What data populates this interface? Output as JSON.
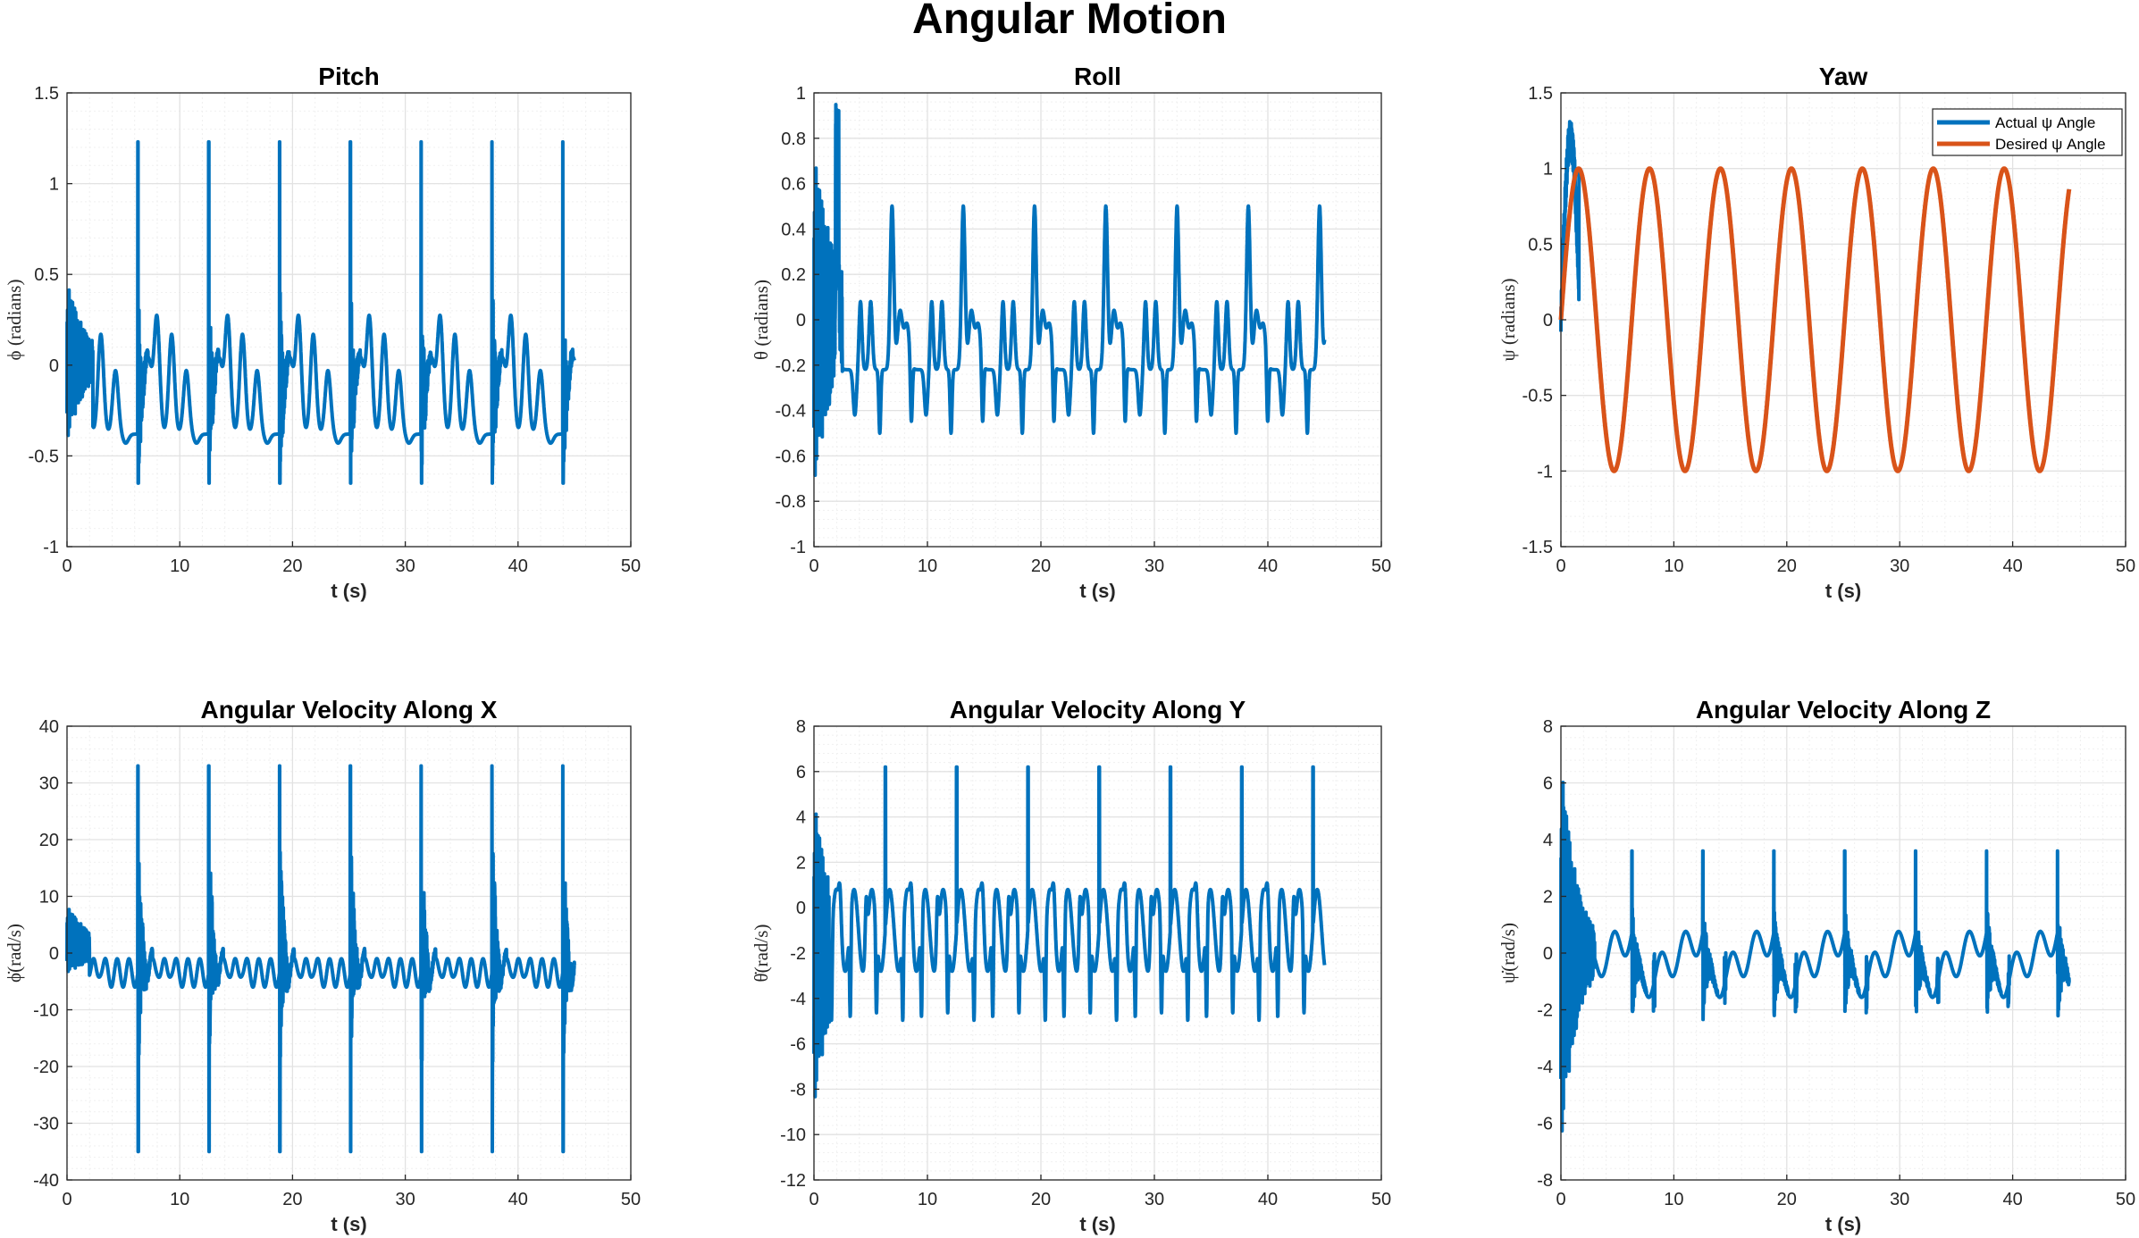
{
  "figure_title": "Angular Motion",
  "colors": {
    "actual": "#0072BD",
    "desired": "#D95319",
    "grid": "#E6E6E6",
    "axis": "#262626"
  },
  "chart_data": [
    {
      "id": "pitch",
      "type": "line",
      "title": "Pitch",
      "xlabel": "t (s)",
      "ylabel": "ϕ (radians)",
      "xlim": [
        0,
        50
      ],
      "ylim": [
        -1,
        1.5
      ],
      "xticks": [
        0,
        10,
        20,
        30,
        40,
        50
      ],
      "yticks": [
        -1,
        -0.5,
        0,
        0.5,
        1,
        1.5
      ],
      "grid": true,
      "minor_grid": true,
      "series": [
        {
          "color": "#0072BD",
          "kind": "pitch",
          "t_end": 45
        }
      ],
      "envelope": {
        "period": 6.28,
        "spike_max": 1.23,
        "spike_min": -0.65,
        "base_min": -0.38,
        "bump_max": 0.36,
        "start_min": -0.55,
        "start_max": 0.52
      }
    },
    {
      "id": "roll",
      "type": "line",
      "title": "Roll",
      "xlabel": "t (s)",
      "ylabel": "θ (radians)",
      "xlim": [
        0,
        50
      ],
      "ylim": [
        -1,
        1
      ],
      "xticks": [
        0,
        10,
        20,
        30,
        40,
        50
      ],
      "yticks": [
        -1,
        -0.8,
        -0.6,
        -0.4,
        -0.2,
        0,
        0.2,
        0.4,
        0.6,
        0.8,
        1
      ],
      "grid": true,
      "minor_grid": true,
      "series": [
        {
          "color": "#0072BD",
          "kind": "roll",
          "t_end": 45
        }
      ],
      "envelope": {
        "period": 6.28,
        "peak_max": 0.55,
        "trough_min": -0.5,
        "start_min": -0.93,
        "start_max": 0.87
      }
    },
    {
      "id": "yaw",
      "type": "line",
      "title": "Yaw",
      "xlabel": "t (s)",
      "ylabel": "ψ (radians)",
      "xlim": [
        0,
        50
      ],
      "ylim": [
        -1.5,
        1.5
      ],
      "xticks": [
        0,
        10,
        20,
        30,
        40,
        50
      ],
      "yticks": [
        -1.5,
        -1,
        -0.5,
        0,
        0.5,
        1,
        1.5
      ],
      "grid": true,
      "minor_grid": true,
      "legend": {
        "location": "top-right",
        "entries": [
          "Actual ψ Angle",
          "Desired ψ Angle"
        ]
      },
      "series": [
        {
          "name": "Actual ψ Angle",
          "color": "#0072BD",
          "kind": "yaw_actual",
          "t_end": 45
        },
        {
          "name": "Desired ψ Angle",
          "color": "#D95319",
          "kind": "sine",
          "amplitude": 1,
          "period": 6.28,
          "t_end": 45
        }
      ]
    },
    {
      "id": "wx",
      "type": "line",
      "title": "Angular Velocity Along X",
      "xlabel": "t (s)",
      "ylabel": "ϕ̇(rad/s)",
      "xlim": [
        0,
        50
      ],
      "ylim": [
        -40,
        40
      ],
      "xticks": [
        0,
        10,
        20,
        30,
        40,
        50
      ],
      "yticks": [
        -40,
        -30,
        -20,
        -10,
        0,
        10,
        20,
        30,
        40
      ],
      "grid": true,
      "minor_grid": true,
      "series": [
        {
          "color": "#0072BD",
          "kind": "wx",
          "t_end": 45
        }
      ],
      "envelope": {
        "period": 6.28,
        "spike_max": 33,
        "spike_min": -35,
        "base": -2,
        "start_max": 10
      }
    },
    {
      "id": "wy",
      "type": "line",
      "title": "Angular Velocity Along Y",
      "xlabel": "t (s)",
      "ylabel": "θ̇(rad/s)",
      "xlim": [
        0,
        50
      ],
      "ylim": [
        -12,
        8
      ],
      "xticks": [
        0,
        10,
        20,
        30,
        40,
        50
      ],
      "yticks": [
        -12,
        -10,
        -8,
        -6,
        -4,
        -2,
        0,
        2,
        4,
        6,
        8
      ],
      "grid": true,
      "minor_grid": true,
      "series": [
        {
          "color": "#0072BD",
          "kind": "wy",
          "t_end": 45
        }
      ],
      "envelope": {
        "period": 6.28,
        "spike_max": 6.2,
        "spike_min": -5.2,
        "start_min": -11.2,
        "start_max": 6
      }
    },
    {
      "id": "wz",
      "type": "line",
      "title": "Angular Velocity Along Z",
      "xlabel": "t (s)",
      "ylabel": "ψ̇(rad/s)",
      "xlim": [
        0,
        50
      ],
      "ylim": [
        -8,
        8
      ],
      "xticks": [
        0,
        10,
        20,
        30,
        40,
        50
      ],
      "yticks": [
        -8,
        -6,
        -4,
        -2,
        0,
        2,
        4,
        6,
        8
      ],
      "grid": true,
      "minor_grid": true,
      "series": [
        {
          "color": "#0072BD",
          "kind": "wz",
          "t_end": 45
        }
      ],
      "envelope": {
        "period": 6.28,
        "spike_max": 3.6,
        "spike_min": -2.2,
        "start_max": 7.3,
        "start_min": -7.5
      }
    }
  ]
}
